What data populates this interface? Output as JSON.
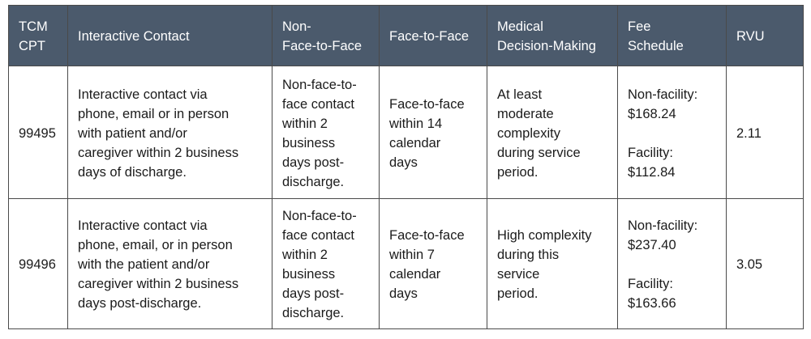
{
  "table": {
    "headers": [
      [
        "TCM",
        "CPT"
      ],
      [
        "Interactive Contact"
      ],
      [
        "Non-",
        "Face-to-Face"
      ],
      [
        "Face-to-Face"
      ],
      [
        "Medical",
        "Decision-Making"
      ],
      [
        "Fee",
        "Schedule"
      ],
      [
        "RVU"
      ]
    ],
    "rows": [
      {
        "cpt": "99495",
        "interactive": [
          "Interactive contact via",
          "phone, email or in person",
          "with patient and/or",
          "caregiver within 2 business",
          "days of discharge."
        ],
        "non_face": [
          "Non-face-to-",
          "face contact",
          "within 2",
          "business",
          "days post-",
          "discharge."
        ],
        "face": [
          "Face-to-face",
          "within 14",
          "calendar",
          "days"
        ],
        "mdm": [
          "At least",
          "moderate",
          "complexity",
          "during service",
          "period."
        ],
        "fee_nonfacility": [
          "Non-facility:",
          "$168.24"
        ],
        "fee_facility": [
          "Facility:",
          "$112.84"
        ],
        "rvu": "2.11"
      },
      {
        "cpt": "99496",
        "interactive": [
          "Interactive contact via",
          "phone, email, or in person",
          "with the patient and/or",
          "caregiver within 2 business",
          "days post-discharge."
        ],
        "non_face": [
          "Non-face-to-",
          "face contact",
          "within 2",
          "business",
          "days post-",
          "discharge."
        ],
        "face": [
          "Face-to-face",
          "within 7",
          "calendar",
          "days"
        ],
        "mdm": [
          "High complexity",
          "during this",
          "service",
          "period."
        ],
        "fee_nonfacility": [
          "Non-facility:",
          "$237.40"
        ],
        "fee_facility": [
          "Facility:",
          "$163.66"
        ],
        "rvu": "3.05"
      }
    ]
  }
}
